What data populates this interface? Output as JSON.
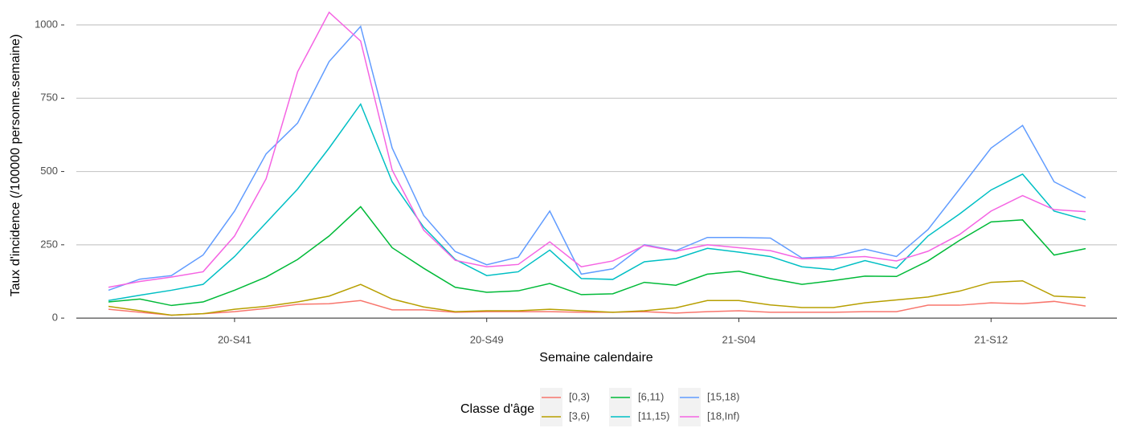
{
  "chart_data": {
    "type": "line",
    "xlabel": "Semaine calendaire",
    "ylabel": "Taux d'incidence (/100000 personne.semaine)",
    "categories": [
      null,
      null,
      null,
      null,
      "20-S41",
      null,
      null,
      null,
      null,
      null,
      null,
      null,
      "20-S49",
      null,
      null,
      null,
      null,
      null,
      null,
      null,
      "21-S04",
      null,
      null,
      null,
      null,
      null,
      null,
      null,
      "21-S12",
      null,
      null,
      null
    ],
    "ylim": [
      -38,
      1085
    ],
    "yticks": [
      0,
      250,
      500,
      750,
      1000
    ],
    "grid": true,
    "legend_title": "Classe d'âge",
    "legend_position": "bottom",
    "series": [
      {
        "name": "[0,3)",
        "color": "#F8766D",
        "values": [
          30,
          20,
          10,
          15,
          22,
          33,
          47,
          49,
          60,
          28,
          28,
          20,
          22,
          22,
          22,
          20,
          20,
          22,
          17,
          22,
          25,
          20,
          20,
          20,
          22,
          22,
          44,
          44,
          52,
          49,
          57,
          41
        ]
      },
      {
        "name": "[3,6)",
        "color": "#B79F00",
        "values": [
          40,
          25,
          10,
          15,
          30,
          40,
          55,
          75,
          115,
          65,
          38,
          22,
          25,
          25,
          30,
          25,
          20,
          25,
          35,
          60,
          60,
          45,
          36,
          36,
          52,
          62,
          72,
          92,
          122,
          127,
          75,
          70
        ]
      },
      {
        "name": "[6,11)",
        "color": "#00BA38",
        "values": [
          55,
          65,
          43,
          55,
          95,
          140,
          200,
          280,
          380,
          240,
          170,
          105,
          88,
          93,
          118,
          80,
          83,
          122,
          112,
          150,
          160,
          135,
          115,
          128,
          143,
          142,
          195,
          265,
          328,
          335,
          215,
          237
        ]
      },
      {
        "name": "[11,15)",
        "color": "#00BFC4",
        "values": [
          60,
          78,
          95,
          115,
          210,
          325,
          440,
          580,
          730,
          465,
          310,
          200,
          145,
          158,
          232,
          135,
          132,
          192,
          203,
          238,
          225,
          210,
          175,
          165,
          196,
          170,
          280,
          355,
          437,
          491,
          365,
          335
        ]
      },
      {
        "name": "[15,18)",
        "color": "#619CFF",
        "values": [
          95,
          133,
          145,
          215,
          365,
          560,
          665,
          875,
          995,
          580,
          350,
          227,
          182,
          208,
          365,
          150,
          168,
          250,
          230,
          275,
          275,
          273,
          205,
          210,
          235,
          210,
          302,
          440,
          580,
          657,
          465,
          410
        ]
      },
      {
        "name": "[18,Inf)",
        "color": "#F564E3",
        "values": [
          105,
          125,
          140,
          158,
          280,
          475,
          840,
          1043,
          945,
          505,
          300,
          197,
          175,
          183,
          260,
          175,
          195,
          248,
          228,
          250,
          240,
          230,
          202,
          205,
          210,
          195,
          228,
          285,
          365,
          418,
          370,
          363
        ]
      }
    ]
  }
}
